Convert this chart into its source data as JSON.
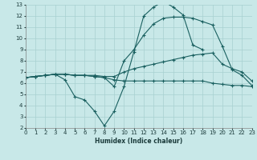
{
  "xlabel": "Humidex (Indice chaleur)",
  "bg_color": "#c8e8e8",
  "grid_color": "#a8d0d0",
  "line_color": "#1a6060",
  "xlim": [
    0,
    23
  ],
  "ylim": [
    2,
    13
  ],
  "xticks": [
    0,
    1,
    2,
    3,
    4,
    5,
    6,
    7,
    8,
    9,
    10,
    11,
    12,
    13,
    14,
    15,
    16,
    17,
    18,
    19,
    20,
    21,
    22,
    23
  ],
  "yticks": [
    2,
    3,
    4,
    5,
    6,
    7,
    8,
    9,
    10,
    11,
    12,
    13
  ],
  "series": [
    {
      "x": [
        0,
        1,
        2,
        3,
        4,
        5,
        6,
        7,
        8,
        9,
        10,
        11,
        12,
        13,
        14,
        15,
        16,
        17,
        18
      ],
      "y": [
        6.5,
        6.6,
        6.7,
        6.8,
        6.3,
        4.8,
        4.5,
        3.5,
        2.2,
        3.5,
        5.7,
        8.8,
        12.0,
        12.8,
        13.3,
        12.8,
        12.1,
        9.4,
        9.0
      ]
    },
    {
      "x": [
        0,
        1,
        2,
        3,
        4,
        5,
        6,
        7,
        8,
        9,
        10,
        11,
        12,
        13,
        14,
        15,
        16,
        17,
        18,
        19,
        20,
        21,
        22,
        23
      ],
      "y": [
        6.5,
        6.6,
        6.7,
        6.8,
        6.8,
        6.7,
        6.7,
        6.7,
        6.6,
        6.6,
        7.0,
        7.3,
        7.5,
        7.7,
        7.9,
        8.1,
        8.3,
        8.5,
        8.6,
        8.7,
        7.7,
        7.3,
        7.0,
        6.2
      ]
    },
    {
      "x": [
        0,
        1,
        2,
        3,
        4,
        5,
        6,
        7,
        8,
        9,
        10,
        11,
        12,
        13,
        14,
        15,
        16,
        17,
        18,
        19,
        20,
        21,
        22,
        23
      ],
      "y": [
        6.5,
        6.6,
        6.7,
        6.8,
        6.8,
        6.7,
        6.7,
        6.6,
        6.5,
        6.3,
        6.2,
        6.2,
        6.2,
        6.2,
        6.2,
        6.2,
        6.2,
        6.2,
        6.2,
        6.0,
        5.9,
        5.8,
        5.8,
        5.7
      ]
    },
    {
      "x": [
        0,
        1,
        2,
        3,
        4,
        5,
        6,
        7,
        8,
        9,
        10,
        11,
        12,
        13,
        14,
        15,
        16,
        17,
        18,
        19,
        20,
        21,
        22,
        23
      ],
      "y": [
        6.5,
        6.6,
        6.7,
        6.8,
        6.8,
        6.7,
        6.7,
        6.6,
        6.5,
        5.7,
        8.0,
        9.0,
        10.3,
        11.3,
        11.8,
        11.9,
        11.9,
        11.8,
        11.5,
        11.2,
        9.3,
        7.2,
        6.7,
        5.8
      ]
    }
  ]
}
